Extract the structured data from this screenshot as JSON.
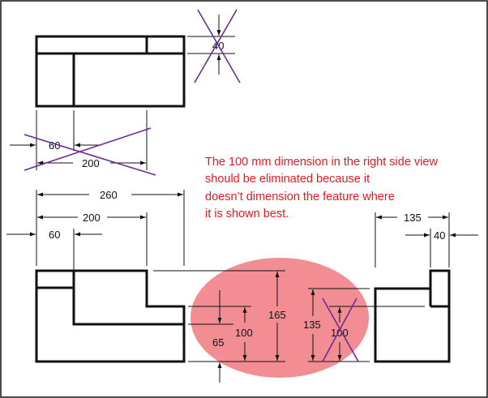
{
  "colors": {
    "object_line": "#111111",
    "dimension_line": "#111111",
    "strike_mark": "#6a2c91",
    "highlight_fill": "#f07a80",
    "note_text": "#e8191f",
    "frame": "#111111"
  },
  "top_view": {
    "dims": {
      "height_40": "40",
      "left_60": "60",
      "width_200": "200"
    }
  },
  "front_view": {
    "dims": {
      "overall_260": "260",
      "step_200": "200",
      "left_60": "60"
    }
  },
  "between_views": {
    "dims": {
      "d165": "165",
      "d100": "100",
      "d65": "65",
      "d135": "135",
      "d100_crossed": "100"
    }
  },
  "side_view": {
    "dims": {
      "width_135": "135",
      "width_40": "40"
    }
  },
  "note": {
    "lines": [
      "The 100 mm dimension in the right side view",
      "should be eliminated because it",
      "doesn’t dimension the feature where",
      "it is shown best."
    ]
  }
}
